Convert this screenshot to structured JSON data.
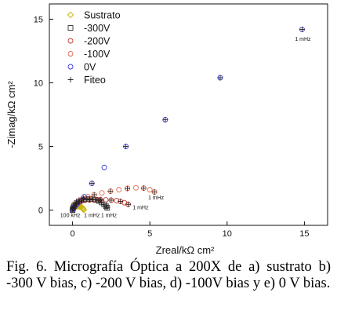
{
  "chart_data": {
    "type": "scatter",
    "xlabel": "Zreal/kΩ cm²",
    "ylabel": "-Zimag/kΩ cm²",
    "xlim": [
      -1.5,
      16.5
    ],
    "ylim": [
      -1.2,
      16.2
    ],
    "x_ticks": [
      0,
      5,
      10,
      15
    ],
    "y_ticks": [
      0,
      5,
      10,
      15
    ],
    "grid": false,
    "legend_placement": "top-left",
    "series": [
      {
        "name": "Sustrato",
        "marker": "diamond",
        "color": "#c8b400",
        "x": [
          0.0,
          0.01,
          0.03,
          0.06,
          0.1,
          0.15,
          0.2,
          0.26,
          0.32,
          0.38,
          0.44,
          0.5,
          0.56,
          0.62,
          0.66,
          0.7,
          0.72
        ],
        "y": [
          0.0,
          0.05,
          0.1,
          0.15,
          0.2,
          0.24,
          0.27,
          0.29,
          0.3,
          0.3,
          0.29,
          0.27,
          0.24,
          0.2,
          0.15,
          0.08,
          0.02
        ]
      },
      {
        "name": "-300V",
        "marker": "square",
        "color": "#333333",
        "x": [
          0.0,
          0.02,
          0.05,
          0.1,
          0.18,
          0.28,
          0.4,
          0.55,
          0.72,
          0.9,
          1.1,
          1.3,
          1.5,
          1.7,
          1.88,
          2.04,
          2.16,
          2.24
        ],
        "y": [
          0.0,
          0.1,
          0.2,
          0.32,
          0.45,
          0.57,
          0.68,
          0.77,
          0.82,
          0.85,
          0.86,
          0.85,
          0.8,
          0.72,
          0.6,
          0.45,
          0.3,
          0.18
        ]
      },
      {
        "name": "-200V",
        "marker": "circle",
        "color": "#c0392b",
        "x": [
          0.0,
          0.05,
          0.12,
          0.22,
          0.35,
          0.55,
          0.8,
          1.1,
          1.45,
          1.8,
          2.15,
          2.5,
          2.85,
          3.1,
          3.35,
          3.6
        ],
        "y": [
          0.0,
          0.15,
          0.3,
          0.45,
          0.58,
          0.7,
          0.77,
          0.8,
          0.82,
          0.82,
          0.8,
          0.78,
          0.75,
          0.68,
          0.58,
          0.45
        ]
      },
      {
        "name": "-100V",
        "marker": "circle",
        "color": "#e06a50",
        "x": [
          0.0,
          0.1,
          0.25,
          0.45,
          0.7,
          1.0,
          1.4,
          1.9,
          2.45,
          3.0,
          3.55,
          4.1,
          4.6,
          5.0,
          5.3
        ],
        "y": [
          0.0,
          0.3,
          0.55,
          0.75,
          0.92,
          1.05,
          1.2,
          1.35,
          1.48,
          1.6,
          1.7,
          1.75,
          1.72,
          1.6,
          1.42
        ]
      },
      {
        "name": "0V",
        "marker": "circle",
        "color": "#3a3ad8",
        "x": [
          0.0,
          0.05,
          0.12,
          0.25,
          0.45,
          0.75,
          1.25,
          2.05,
          3.45,
          6.0,
          9.55,
          14.85
        ],
        "y": [
          0.0,
          0.12,
          0.25,
          0.4,
          0.65,
          1.05,
          2.1,
          3.35,
          5.0,
          7.1,
          10.4,
          14.2
        ]
      },
      {
        "name": "Fiteo",
        "marker": "plus",
        "color": "#222222",
        "x": [
          0.0,
          0.02,
          0.05,
          0.1,
          0.18,
          0.28,
          0.4,
          0.55,
          0.72,
          0.9,
          1.1,
          1.3,
          1.5,
          1.7,
          1.88,
          2.04,
          2.16,
          2.24,
          0.05,
          0.22,
          0.55,
          1.1,
          1.8,
          2.5,
          3.1,
          3.6,
          0.25,
          0.7,
          1.4,
          2.45,
          3.55,
          4.6,
          5.3,
          0.12,
          0.45,
          1.25,
          3.45,
          6.0,
          9.55,
          14.85
        ],
        "y": [
          0.0,
          0.1,
          0.2,
          0.32,
          0.45,
          0.57,
          0.68,
          0.77,
          0.82,
          0.85,
          0.86,
          0.85,
          0.8,
          0.72,
          0.6,
          0.45,
          0.3,
          0.18,
          0.15,
          0.45,
          0.7,
          0.8,
          0.82,
          0.78,
          0.68,
          0.45,
          0.55,
          0.92,
          1.2,
          1.48,
          1.7,
          1.72,
          1.42,
          0.25,
          0.65,
          2.1,
          5.0,
          7.1,
          10.4,
          14.2
        ]
      }
    ],
    "annotations": [
      {
        "text": "1 mHz",
        "x": 14.9,
        "y": 13.3
      },
      {
        "text": "1 mHz",
        "x": 5.4,
        "y": 0.85
      },
      {
        "text": "1 mHz",
        "x": 4.4,
        "y": 0.05
      },
      {
        "text": "1 mHz",
        "x": 2.35,
        "y": -0.55
      },
      {
        "text": "1 mHz",
        "x": 1.25,
        "y": -0.55
      },
      {
        "text": "100 kHz",
        "x": -0.15,
        "y": -0.55
      }
    ]
  },
  "caption": "Fig. 6. Micrografía Óptica a 200X de a) sustrato b) -300 V bias, c) -200 V bias, d) -100V bias y e) 0 V bias."
}
